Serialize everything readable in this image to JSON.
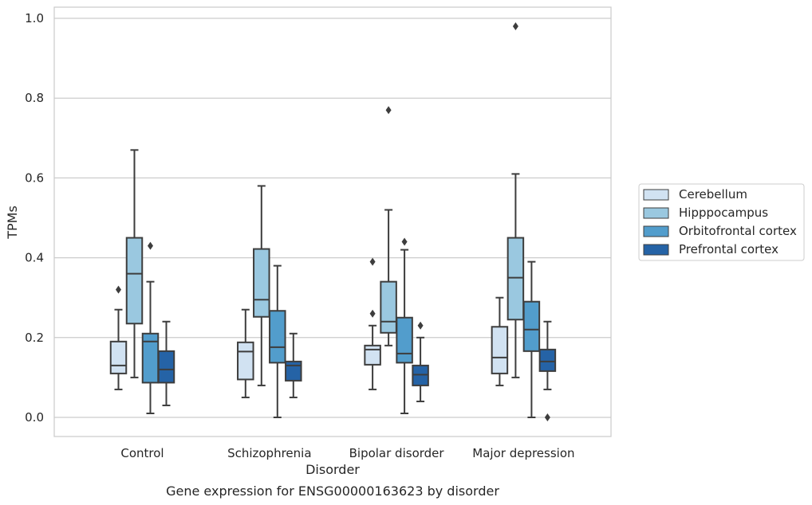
{
  "chart_data": {
    "type": "boxplot",
    "title": "Gene expression for ENSG00000163623 by disorder",
    "xlabel": "Disorder",
    "ylabel": "TPMs",
    "ylim": [
      -0.045,
      1.025
    ],
    "yticks": [
      0.0,
      0.2,
      0.4,
      0.6,
      0.8,
      1.0
    ],
    "ytick_labels": [
      "0.0",
      "0.2",
      "0.4",
      "0.6",
      "0.8",
      "1.0"
    ],
    "grid": "horizontal",
    "legend_position": "right",
    "categories": [
      "Control",
      "Schizophrenia",
      "Bipolar disorder",
      "Major depression"
    ],
    "series": [
      {
        "name": "Cerebellum",
        "color": "#d1e2f2",
        "boxes": [
          {
            "whislo": 0.07,
            "q1": 0.11,
            "med": 0.13,
            "q3": 0.19,
            "whishi": 0.27,
            "fliers": [
              0.32
            ]
          },
          {
            "whislo": 0.05,
            "q1": 0.095,
            "med": 0.165,
            "q3": 0.188,
            "whishi": 0.27,
            "fliers": []
          },
          {
            "whislo": 0.07,
            "q1": 0.132,
            "med": 0.17,
            "q3": 0.18,
            "whishi": 0.23,
            "fliers": [
              0.26,
              0.39
            ]
          },
          {
            "whislo": 0.08,
            "q1": 0.11,
            "med": 0.15,
            "q3": 0.227,
            "whishi": 0.3,
            "fliers": []
          }
        ]
      },
      {
        "name": "Hipppocampus",
        "color": "#9ac8e0",
        "boxes": [
          {
            "whislo": 0.1,
            "q1": 0.235,
            "med": 0.36,
            "q3": 0.45,
            "whishi": 0.67,
            "fliers": []
          },
          {
            "whislo": 0.08,
            "q1": 0.252,
            "med": 0.295,
            "q3": 0.422,
            "whishi": 0.58,
            "fliers": []
          },
          {
            "whislo": 0.18,
            "q1": 0.212,
            "med": 0.24,
            "q3": 0.34,
            "whishi": 0.52,
            "fliers": [
              0.77
            ]
          },
          {
            "whislo": 0.1,
            "q1": 0.245,
            "med": 0.35,
            "q3": 0.45,
            "whishi": 0.61,
            "fliers": [
              0.98
            ]
          }
        ]
      },
      {
        "name": "Orbitofrontal cortex",
        "color": "#529dcc",
        "boxes": [
          {
            "whislo": 0.01,
            "q1": 0.087,
            "med": 0.19,
            "q3": 0.21,
            "whishi": 0.34,
            "fliers": [
              0.43
            ]
          },
          {
            "whislo": 0.0,
            "q1": 0.137,
            "med": 0.176,
            "q3": 0.267,
            "whishi": 0.38,
            "fliers": []
          },
          {
            "whislo": 0.01,
            "q1": 0.137,
            "med": 0.16,
            "q3": 0.25,
            "whishi": 0.42,
            "fliers": [
              0.44
            ]
          },
          {
            "whislo": 0.0,
            "q1": 0.166,
            "med": 0.22,
            "q3": 0.29,
            "whishi": 0.39,
            "fliers": []
          }
        ]
      },
      {
        "name": "Prefrontal cortex",
        "color": "#2563a6",
        "boxes": [
          {
            "whislo": 0.03,
            "q1": 0.087,
            "med": 0.12,
            "q3": 0.166,
            "whishi": 0.24,
            "fliers": []
          },
          {
            "whislo": 0.05,
            "q1": 0.092,
            "med": 0.13,
            "q3": 0.14,
            "whishi": 0.21,
            "fliers": []
          },
          {
            "whislo": 0.04,
            "q1": 0.08,
            "med": 0.107,
            "q3": 0.13,
            "whishi": 0.2,
            "fliers": [
              0.23
            ]
          },
          {
            "whislo": 0.07,
            "q1": 0.116,
            "med": 0.14,
            "q3": 0.17,
            "whishi": 0.24,
            "fliers": [
              0.0
            ]
          }
        ]
      }
    ]
  }
}
